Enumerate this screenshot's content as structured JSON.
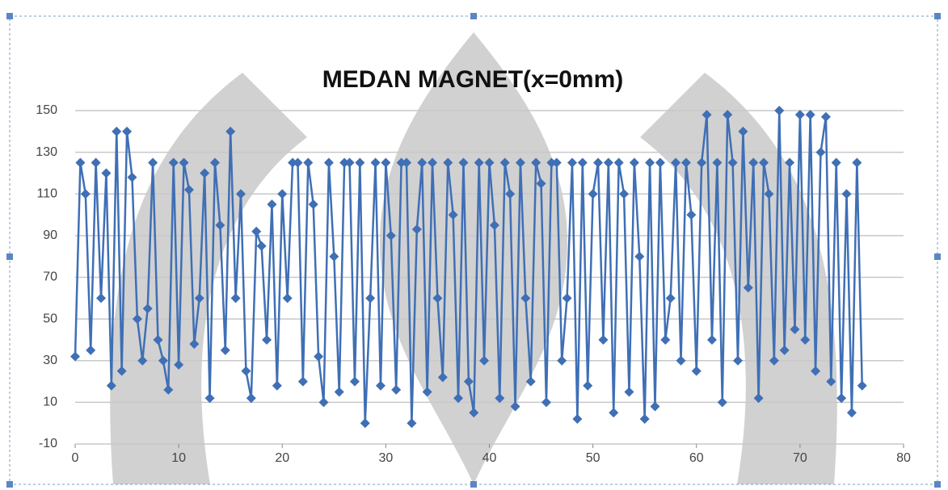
{
  "chart_data": {
    "type": "line",
    "title": "MEDAN MAGNET(x=0mm)",
    "x": [
      0,
      0.5,
      1,
      1.5,
      2,
      2.5,
      3,
      3.5,
      4,
      4.5,
      5,
      5.5,
      6,
      6.5,
      7,
      7.5,
      8,
      8.5,
      9,
      9.5,
      10,
      10.5,
      11,
      11.5,
      12,
      12.5,
      13,
      13.5,
      14,
      14.5,
      15,
      15.5,
      16,
      16.5,
      17,
      17.5,
      18,
      18.5,
      19,
      19.5,
      20,
      20.5,
      21,
      21.5,
      22,
      22.5,
      23,
      23.5,
      24,
      24.5,
      25,
      25.5,
      26,
      26.5,
      27,
      27.5,
      28,
      28.5,
      29,
      29.5,
      30,
      30.5,
      31,
      31.5,
      32,
      32.5,
      33,
      33.5,
      34,
      34.5,
      35,
      35.5,
      36,
      36.5,
      37,
      37.5,
      38,
      38.5,
      39,
      39.5,
      40,
      40.5,
      41,
      41.5,
      42,
      42.5,
      43,
      43.5,
      44,
      44.5,
      45,
      45.5,
      46,
      46.5,
      47,
      47.5,
      48,
      48.5,
      49,
      49.5,
      50,
      50.5,
      51,
      51.5,
      52,
      52.5,
      53,
      53.5,
      54,
      54.5,
      55,
      55.5,
      56,
      56.5,
      57,
      57.5,
      58,
      58.5,
      59,
      59.5,
      60,
      60.5,
      61,
      61.5,
      62,
      62.5,
      63,
      63.5,
      64,
      64.5,
      65,
      65.5,
      66,
      66.5,
      67,
      67.5,
      68,
      68.5,
      69,
      69.5,
      70,
      70.5,
      71,
      71.5,
      72,
      72.5,
      73,
      73.5,
      74,
      74.5,
      75,
      75.5,
      76
    ],
    "series": [
      {
        "color": "#3f6fb5",
        "values": [
          32,
          125,
          110,
          35,
          125,
          60,
          120,
          18,
          140,
          25,
          140,
          118,
          50,
          30,
          55,
          125,
          40,
          30,
          16,
          125,
          28,
          125,
          112,
          38,
          60,
          120,
          12,
          125,
          95,
          35,
          140,
          60,
          110,
          25,
          12,
          92,
          85,
          40,
          105,
          18,
          110,
          60,
          125,
          125,
          20,
          125,
          105,
          32,
          10,
          125,
          80,
          15,
          125,
          125,
          20,
          125,
          0,
          60,
          125,
          18,
          125,
          90,
          16,
          125,
          125,
          0,
          93,
          125,
          15,
          125,
          60,
          22,
          125,
          100,
          12,
          125,
          20,
          5,
          125,
          30,
          125,
          95,
          12,
          125,
          110,
          8,
          125,
          60,
          20,
          125,
          115,
          10,
          125,
          125,
          30,
          60,
          125,
          2,
          125,
          18,
          110,
          125,
          40,
          125,
          5,
          125,
          110,
          15,
          125,
          80,
          2,
          125,
          8,
          125,
          40,
          60,
          125,
          30,
          125,
          100,
          25,
          125,
          148,
          40,
          125,
          10,
          148,
          125,
          30,
          140,
          65,
          125,
          12,
          125,
          110,
          30,
          150,
          35,
          125,
          45,
          148,
          40,
          148,
          25,
          130,
          147,
          20,
          125,
          12,
          110,
          5,
          125,
          18
        ]
      }
    ],
    "xlim": [
      0,
      80
    ],
    "xticks": [
      0,
      10,
      20,
      30,
      40,
      50,
      60,
      70,
      80
    ],
    "ylim": [
      -10,
      150
    ],
    "yticks": [
      -10,
      10,
      30,
      50,
      70,
      90,
      110,
      130,
      150
    ],
    "grid": true
  }
}
